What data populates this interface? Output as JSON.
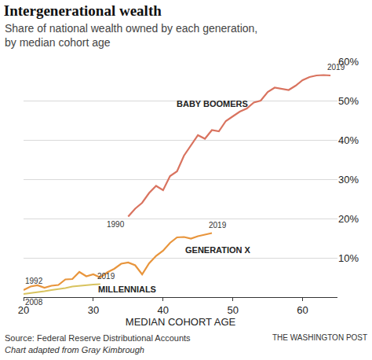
{
  "chart_data": {
    "type": "line",
    "title": "Intergenerational wealth",
    "subtitle": "Share of national wealth owned by each generation, by median cohort age",
    "xlabel": "MEDIAN COHORT AGE",
    "source": "Source: Federal Reserve Distributional Accounts",
    "note": "Chart adapted from Gray Kimbrough",
    "credit": "THE WASHINGTON POST",
    "xlim": [
      20,
      65
    ],
    "xticks": [
      20,
      30,
      40,
      50,
      60
    ],
    "ylim": [
      0,
      60
    ],
    "yticks": [
      {
        "value": 10,
        "label": "10%"
      },
      {
        "value": 20,
        "label": "20%"
      },
      {
        "value": 30,
        "label": "30%"
      },
      {
        "value": 40,
        "label": "40%"
      },
      {
        "value": 50,
        "label": "50%"
      },
      {
        "value": 60,
        "label": "60%"
      }
    ],
    "grid": true,
    "series": [
      {
        "name": "BABY BOOMERS",
        "color": "#d9735f",
        "start_label": "1990",
        "end_label": "2019",
        "x": [
          35,
          36,
          37,
          38,
          39,
          40,
          41,
          42,
          43,
          44,
          45,
          46,
          47,
          48,
          49,
          50,
          51,
          52,
          53,
          54,
          55,
          56,
          57,
          58,
          59,
          60,
          61,
          62,
          63,
          64
        ],
        "values": [
          20.5,
          22.5,
          24,
          26.5,
          28.3,
          27.2,
          30.8,
          32,
          36,
          38.5,
          41.2,
          40.3,
          42.5,
          42.2,
          44.8,
          46,
          47.2,
          48,
          49.5,
          50,
          52.2,
          53.3,
          53,
          52.7,
          53.8,
          55.2,
          56,
          56.4,
          56.5,
          56.4
        ]
      },
      {
        "name": "GENERATION X",
        "color": "#e8953c",
        "start_label": "1992",
        "end_label": "2019",
        "x": [
          20,
          21,
          22,
          23,
          24,
          25,
          26,
          27,
          28,
          29,
          30,
          31,
          32,
          33,
          34,
          35,
          36,
          37,
          38,
          39,
          40,
          41,
          42,
          43,
          44,
          45,
          46,
          47
        ],
        "values": [
          1.8,
          2.7,
          3.0,
          2.4,
          2.9,
          3.1,
          4.5,
          4.6,
          6.4,
          5.3,
          5.8,
          5.0,
          6.3,
          7.2,
          8.5,
          8.8,
          8.1,
          5.8,
          8.6,
          10.5,
          11.8,
          13.8,
          15.2,
          15.3,
          14.9,
          15.5,
          15.9,
          16.3
        ]
      },
      {
        "name": "MILLENNIALS",
        "color": "#d8c35f",
        "start_label": "2008",
        "end_label": "2019",
        "x": [
          20,
          21,
          22,
          23,
          24,
          25,
          26,
          27,
          28,
          29,
          30,
          31
        ],
        "values": [
          0.8,
          1.0,
          1.2,
          1.5,
          1.8,
          2.0,
          2.3,
          2.7,
          2.9,
          3.1,
          3.2,
          3.3
        ]
      }
    ]
  }
}
